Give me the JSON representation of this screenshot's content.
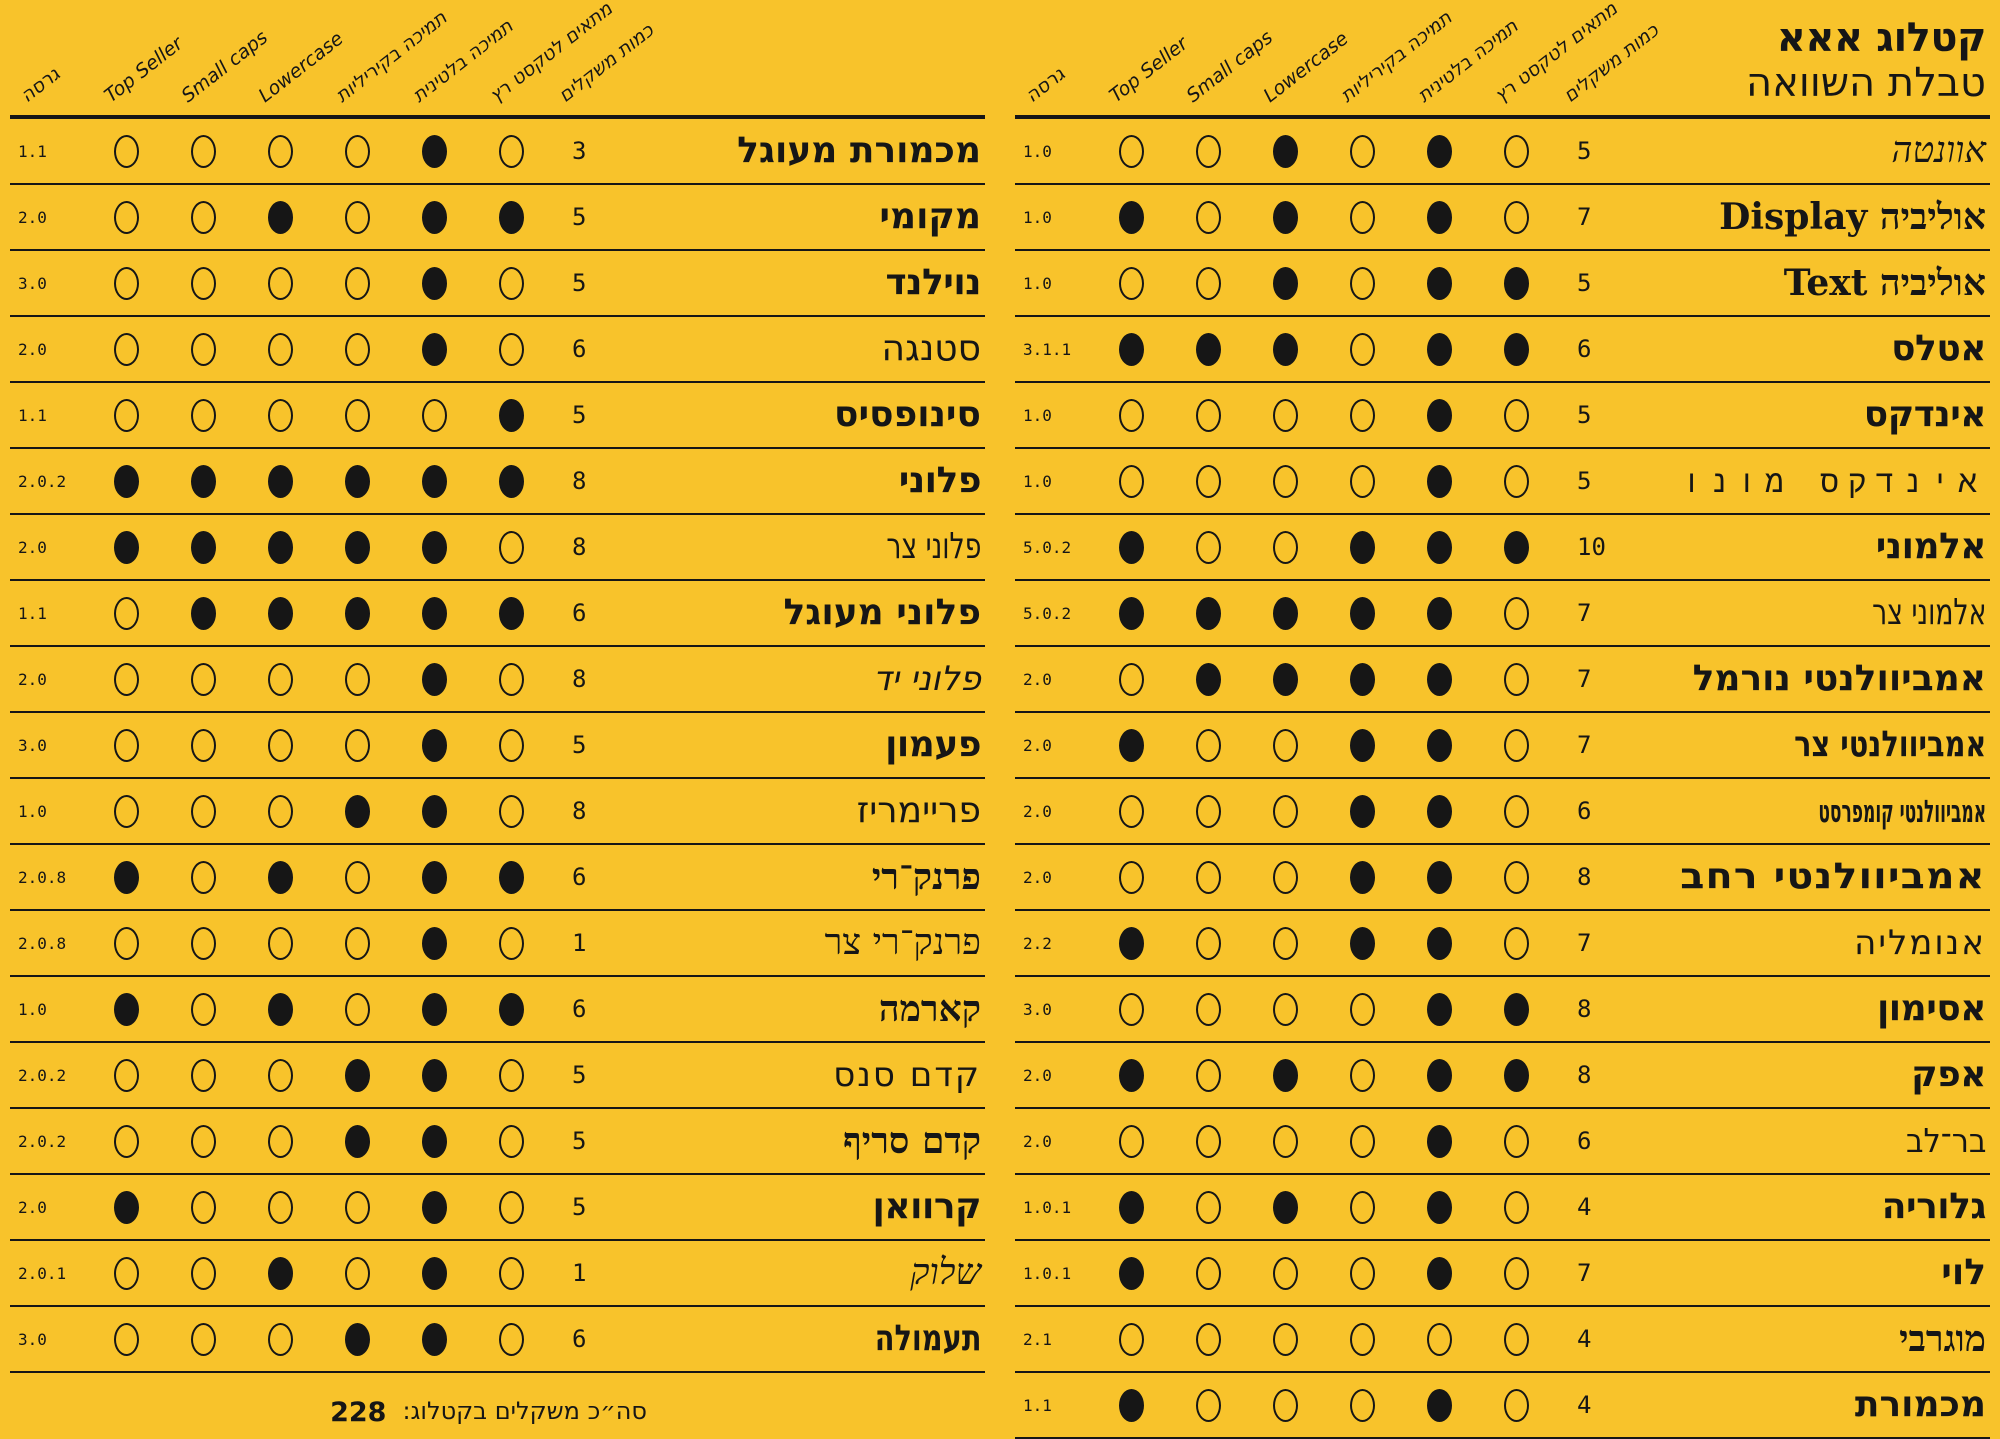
{
  "header": {
    "title_bold": "קטלוג אאא",
    "title_sub": "טבלת השוואה"
  },
  "colors": {
    "background": "#F8C32B",
    "ink": "#161616"
  },
  "columns": [
    {
      "label": "גרסה"
    },
    {
      "label": "Top Seller"
    },
    {
      "label": "Small caps"
    },
    {
      "label": "Lowercase"
    },
    {
      "label": "תמיכה בקיריליות"
    },
    {
      "label": "תמיכה בלטינית"
    },
    {
      "label": "מתאים לטקסט רץ"
    },
    {
      "label": "כמות משקלים"
    }
  ],
  "tables": {
    "right": {
      "rows": [
        {
          "name": "אוונטה",
          "version": "1.0",
          "dots": [
            0,
            0,
            1,
            0,
            1,
            0
          ],
          "weights": "5",
          "style_hint": "script"
        },
        {
          "name": "אוליביה Display",
          "version": "1.0",
          "dots": [
            1,
            0,
            1,
            0,
            1,
            0
          ],
          "weights": "7",
          "style_hint": "serif-bold"
        },
        {
          "name": "אוליביה Text",
          "version": "1.0",
          "dots": [
            0,
            0,
            1,
            0,
            1,
            1
          ],
          "weights": "5",
          "style_hint": "serif-bold"
        },
        {
          "name": "אטלס",
          "version": "3.1.1",
          "dots": [
            1,
            1,
            1,
            0,
            1,
            1
          ],
          "weights": "6",
          "style_hint": "sans-heavy"
        },
        {
          "name": "אינדקס",
          "version": "1.0",
          "dots": [
            0,
            0,
            0,
            0,
            1,
            0
          ],
          "weights": "5",
          "style_hint": "sans-heavy"
        },
        {
          "name": "אינדקס מונו",
          "version": "1.0",
          "dots": [
            0,
            0,
            0,
            0,
            1,
            0
          ],
          "weights": "5",
          "style_hint": "mono"
        },
        {
          "name": "אלמוני",
          "version": "5.0.2",
          "dots": [
            1,
            0,
            0,
            1,
            1,
            1
          ],
          "weights": "10",
          "style_hint": "sans-heavy"
        },
        {
          "name": "אלמוני צר",
          "version": "5.0.2",
          "dots": [
            1,
            1,
            1,
            1,
            1,
            0
          ],
          "weights": "7",
          "style_hint": "cond-light"
        },
        {
          "name": "אמביוולנטי נורמל",
          "version": "2.0",
          "dots": [
            0,
            1,
            1,
            1,
            1,
            0
          ],
          "weights": "7",
          "style_hint": "sans-bold"
        },
        {
          "name": "אמביוולנטי צר",
          "version": "2.0",
          "dots": [
            1,
            0,
            0,
            1,
            1,
            0
          ],
          "weights": "7",
          "style_hint": "heavy-cond"
        },
        {
          "name": "אמביוולנטי קומפרסט",
          "version": "2.0",
          "dots": [
            0,
            0,
            0,
            1,
            1,
            0
          ],
          "weights": "6",
          "style_hint": "compressed"
        },
        {
          "name": "אמביוולנטי רחב",
          "version": "2.0",
          "dots": [
            0,
            0,
            0,
            1,
            1,
            0
          ],
          "weights": "8",
          "style_hint": "wide-heavy"
        },
        {
          "name": "אנומליה",
          "version": "2.2",
          "dots": [
            1,
            0,
            0,
            1,
            1,
            0
          ],
          "weights": "7",
          "style_hint": "wide-light"
        },
        {
          "name": "אסימון",
          "version": "3.0",
          "dots": [
            0,
            0,
            0,
            0,
            1,
            1
          ],
          "weights": "8",
          "style_hint": "sans-heavy"
        },
        {
          "name": "אפק",
          "version": "2.0",
          "dots": [
            1,
            0,
            1,
            0,
            1,
            1
          ],
          "weights": "8",
          "style_hint": "sans-heavy"
        },
        {
          "name": "בר־לב",
          "version": "2.0",
          "dots": [
            0,
            0,
            0,
            0,
            1,
            0
          ],
          "weights": "6",
          "style_hint": "thin"
        },
        {
          "name": "גלוריה",
          "version": "1.0.1",
          "dots": [
            1,
            0,
            1,
            0,
            1,
            0
          ],
          "weights": "4",
          "style_hint": "sans-heavy"
        },
        {
          "name": "לוי",
          "version": "1.0.1",
          "dots": [
            1,
            0,
            0,
            0,
            1,
            0
          ],
          "weights": "7",
          "style_hint": "sans-bold"
        },
        {
          "name": "מוגרבי",
          "version": "2.1",
          "dots": [
            0,
            0,
            0,
            0,
            0,
            0
          ],
          "weights": "4",
          "style_hint": "serif-bold"
        },
        {
          "name": "מכמורת",
          "version": "1.1",
          "dots": [
            1,
            0,
            0,
            0,
            1,
            0
          ],
          "weights": "4",
          "style_hint": "sans-bold"
        }
      ]
    },
    "left": {
      "rows": [
        {
          "name": "מכמורת מעוגל",
          "version": "1.1",
          "dots": [
            0,
            0,
            0,
            0,
            1,
            0
          ],
          "weights": "3",
          "style_hint": "sans-bold"
        },
        {
          "name": "מקומי",
          "version": "2.0",
          "dots": [
            0,
            0,
            1,
            0,
            1,
            1
          ],
          "weights": "5",
          "style_hint": "sans-bold"
        },
        {
          "name": "נוילנד",
          "version": "3.0",
          "dots": [
            0,
            0,
            0,
            0,
            1,
            0
          ],
          "weights": "5",
          "style_hint": "sans-heavy"
        },
        {
          "name": "סטנגה",
          "version": "2.0",
          "dots": [
            0,
            0,
            0,
            0,
            1,
            0
          ],
          "weights": "6",
          "style_hint": "sans"
        },
        {
          "name": "סינופסיס",
          "version": "1.1",
          "dots": [
            0,
            0,
            0,
            0,
            0,
            1
          ],
          "weights": "5",
          "style_hint": "sans-bold"
        },
        {
          "name": "פלוני",
          "version": "2.0.2",
          "dots": [
            1,
            1,
            1,
            1,
            1,
            1
          ],
          "weights": "8",
          "style_hint": "sans-heavy"
        },
        {
          "name": "פלוני צר",
          "version": "2.0",
          "dots": [
            1,
            1,
            1,
            1,
            1,
            0
          ],
          "weights": "8",
          "style_hint": "cond-light"
        },
        {
          "name": "פלוני מעוגל",
          "version": "1.1",
          "dots": [
            0,
            1,
            1,
            1,
            1,
            1
          ],
          "weights": "6",
          "style_hint": "sans-bold"
        },
        {
          "name": "פלוני יד",
          "version": "2.0",
          "dots": [
            0,
            0,
            0,
            0,
            1,
            0
          ],
          "weights": "8",
          "style_hint": "hand"
        },
        {
          "name": "פעמון",
          "version": "3.0",
          "dots": [
            0,
            0,
            0,
            0,
            1,
            0
          ],
          "weights": "5",
          "style_hint": "sans-heavy"
        },
        {
          "name": "פריימריז",
          "version": "1.0",
          "dots": [
            0,
            0,
            0,
            1,
            1,
            0
          ],
          "weights": "8",
          "style_hint": "sans"
        },
        {
          "name": "פרנק־רי",
          "version": "2.0.8",
          "dots": [
            1,
            0,
            1,
            0,
            1,
            1
          ],
          "weights": "6",
          "style_hint": "serif-bold"
        },
        {
          "name": "פרנק־רי צר",
          "version": "2.0.8",
          "dots": [
            0,
            0,
            0,
            0,
            1,
            0
          ],
          "weights": "1",
          "style_hint": "serif"
        },
        {
          "name": "קארמה",
          "version": "1.0",
          "dots": [
            1,
            0,
            1,
            0,
            1,
            1
          ],
          "weights": "6",
          "style_hint": "serif-bold"
        },
        {
          "name": "קדם סנס",
          "version": "2.0.2",
          "dots": [
            0,
            0,
            0,
            1,
            1,
            0
          ],
          "weights": "5",
          "style_hint": "wide-light"
        },
        {
          "name": "קדם סריף",
          "version": "2.0.2",
          "dots": [
            0,
            0,
            0,
            1,
            1,
            0
          ],
          "weights": "5",
          "style_hint": "serif-bold"
        },
        {
          "name": "קרוואן",
          "version": "2.0",
          "dots": [
            1,
            0,
            0,
            0,
            1,
            0
          ],
          "weights": "5",
          "style_hint": "sans-heavy"
        },
        {
          "name": "שלוק",
          "version": "2.0.1",
          "dots": [
            0,
            0,
            1,
            0,
            1,
            0
          ],
          "weights": "1",
          "style_hint": "script"
        },
        {
          "name": "תעמולה",
          "version": "3.0",
          "dots": [
            0,
            0,
            0,
            1,
            1,
            0
          ],
          "weights": "6",
          "style_hint": "heavy-cond"
        }
      ],
      "footer": {
        "label": "סה״כ משקלים בקטלוג:",
        "value": "228"
      }
    }
  }
}
